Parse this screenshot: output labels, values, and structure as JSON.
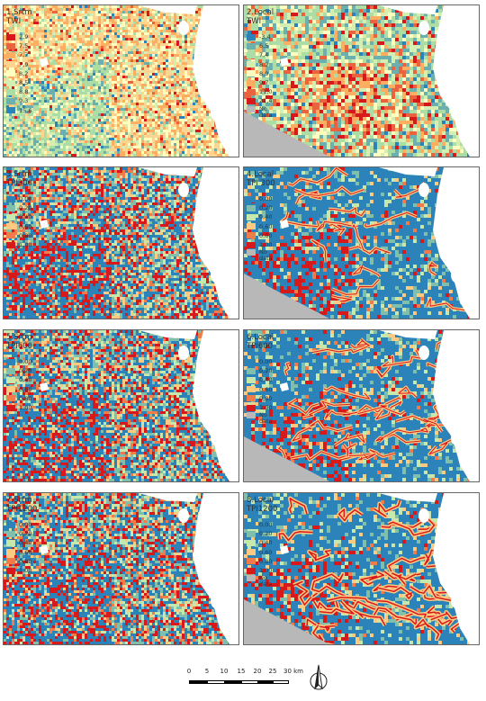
{
  "panels": [
    {
      "id": "p1",
      "title": "1.Srtm\nTWI",
      "scheme": "twi",
      "density": "fine",
      "nodata": false,
      "legend": [
        {
          "label": "2,9",
          "color": "#d7191c"
        },
        {
          "label": "7,5",
          "color": "#ea633e"
        },
        {
          "label": "7,7",
          "color": "#fdae61"
        },
        {
          "label": "7,9",
          "color": "#fed590"
        },
        {
          "label": "8,2",
          "color": "#ffffbf"
        },
        {
          "label": "8,5",
          "color": "#d5eeb2"
        },
        {
          "label": "8,8",
          "color": "#abdda4"
        },
        {
          "label": "9,3",
          "color": "#6bb0af"
        },
        {
          "label": "15,6",
          "color": "#2b83ba"
        }
      ]
    },
    {
      "id": "p2",
      "title": "2.Local\nTWI",
      "scheme": "twi_local",
      "density": "coarse",
      "nodata": true,
      "legend": [
        {
          "label": "-3,4",
          "color": "#2b83ba"
        },
        {
          "label": "6,5",
          "color": "#6bb0af"
        },
        {
          "label": "7,4",
          "color": "#abdda4"
        },
        {
          "label": "8,2",
          "color": "#d5eeb2"
        },
        {
          "label": "8,9",
          "color": "#ffffbf"
        },
        {
          "label": "9,7",
          "color": "#fdae61"
        },
        {
          "label": "11,0",
          "color": "#ea633e"
        },
        {
          "label": "21,4",
          "color": "#d7191c"
        },
        {
          "label": "No\ndata",
          "color": "#b8b8b8"
        }
      ]
    },
    {
      "id": "p3",
      "title": "3.Srtm\nTPI300",
      "scheme": "tpi",
      "density": "fine",
      "nodata": false,
      "legend": [
        {
          "label": "0,00",
          "color": "#2b83ba"
        },
        {
          "label": "0,20",
          "color": "#80bfab"
        },
        {
          "label": "0,40",
          "color": "#c7e8ad"
        },
        {
          "label": "0,60",
          "color": "#fec980"
        },
        {
          "label": "0,80",
          "color": "#f17c4a"
        },
        {
          "label": "1,00",
          "color": "#d7191c"
        }
      ]
    },
    {
      "id": "p4",
      "title": "4.Local\nTPI 300",
      "scheme": "tpi_local",
      "density": "coarse",
      "nodata": true,
      "legend": [
        {
          "label": "0,00",
          "color": "#2b83ba"
        },
        {
          "label": "0,20",
          "color": "#80bfab"
        },
        {
          "label": "0,40",
          "color": "#c7e8ad"
        },
        {
          "label": "0,60",
          "color": "#fec980"
        },
        {
          "label": "0,80",
          "color": "#f17c4a"
        },
        {
          "label": "1,00",
          "color": "#d7191c"
        },
        {
          "label": "No\ndata",
          "color": "#b8b8b8"
        }
      ]
    },
    {
      "id": "p5",
      "title": "5.Srtm\nTPI600",
      "scheme": "tpi",
      "density": "fine",
      "nodata": false,
      "legend": [
        {
          "label": "0,00",
          "color": "#2b83ba"
        },
        {
          "label": "0,20",
          "color": "#80bfab"
        },
        {
          "label": "0,40",
          "color": "#c7e8ad"
        },
        {
          "label": "0,60",
          "color": "#fec980"
        },
        {
          "label": "0,80",
          "color": "#f17c4a"
        },
        {
          "label": "1,00",
          "color": "#d7191c"
        }
      ]
    },
    {
      "id": "p6",
      "title": "6.Local\nTPI600",
      "scheme": "tpi_local",
      "density": "coarse",
      "nodata": true,
      "legend": [
        {
          "label": "0,00",
          "color": "#2b83ba"
        },
        {
          "label": "0,20",
          "color": "#80bfab"
        },
        {
          "label": "0,40",
          "color": "#c7e8ad"
        },
        {
          "label": "0,60",
          "color": "#fec980"
        },
        {
          "label": "0,80",
          "color": "#f17c4a"
        },
        {
          "label": "1,00",
          "color": "#d7191c"
        },
        {
          "label": "No\ndata",
          "color": "#b8b8b8"
        }
      ]
    },
    {
      "id": "p7",
      "title": "7.Srtm\nTPI1200",
      "scheme": "tpi",
      "density": "fine",
      "nodata": false,
      "legend": [
        {
          "label": "0,00",
          "color": "#2b83ba"
        },
        {
          "label": "0,20",
          "color": "#80bfab"
        },
        {
          "label": "0,40",
          "color": "#c7e8ad"
        },
        {
          "label": "0,60",
          "color": "#fec980"
        },
        {
          "label": "0,80",
          "color": "#f17c4a"
        },
        {
          "label": "1,00",
          "color": "#d7191c"
        }
      ]
    },
    {
      "id": "p8",
      "title": "8.Local\nTPI1200",
      "scheme": "tpi_local",
      "density": "coarse",
      "nodata": true,
      "legend": [
        {
          "label": "0,00",
          "color": "#2b83ba"
        },
        {
          "label": "0,20",
          "color": "#80bfab"
        },
        {
          "label": "0,40",
          "color": "#c7e8ad"
        },
        {
          "label": "0,60",
          "color": "#fec980"
        },
        {
          "label": "0,80",
          "color": "#f17c4a"
        },
        {
          "label": "1,00",
          "color": "#d7191c"
        },
        {
          "label": "No\ndata",
          "color": "#b8b8b8"
        }
      ]
    }
  ],
  "scalebar": {
    "labels": [
      "0",
      "5",
      "10",
      "15",
      "20",
      "25",
      "30 km"
    ]
  },
  "north_arrow": {
    "icon": "north-arrow-icon"
  },
  "colors": {
    "nodata": "#b8b8b8",
    "border": "#666666"
  }
}
